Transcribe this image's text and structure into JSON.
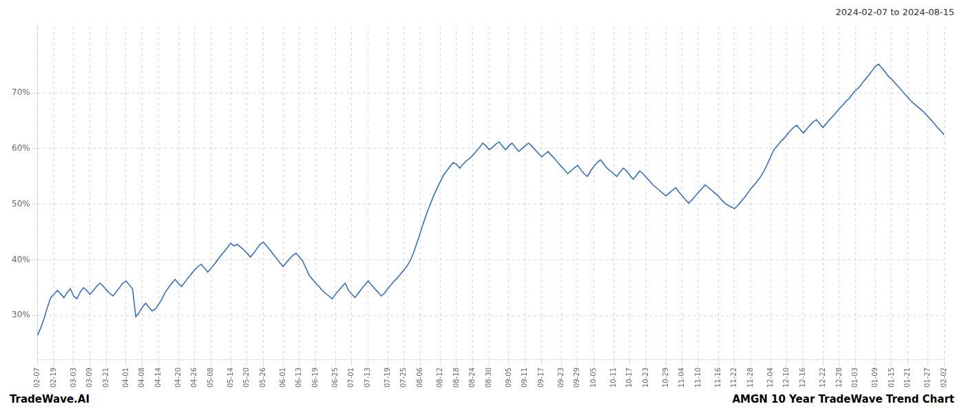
{
  "chart_data": {
    "type": "line",
    "title": "AMGN 10 Year TradeWave Trend Chart",
    "subtitle": "2024-02-07 to 2024-08-15",
    "annotations": [
      "TradeWave.AI"
    ],
    "color": "#2866b8",
    "grid": true,
    "ylim": [
      22,
      82
    ],
    "yticks": [
      {
        "value": 30,
        "label": "30%"
      },
      {
        "value": 40,
        "label": "40%"
      },
      {
        "value": 50,
        "label": "50%"
      },
      {
        "value": 60,
        "label": "60%"
      },
      {
        "value": 70,
        "label": "70%"
      }
    ],
    "categories": [
      "02-07",
      null,
      null,
      null,
      null,
      "02-19",
      null,
      null,
      null,
      null,
      null,
      "03-03",
      null,
      null,
      null,
      null,
      "03-09",
      null,
      null,
      null,
      null,
      "03-21",
      null,
      null,
      null,
      null,
      null,
      "04-01",
      null,
      null,
      null,
      null,
      "04-08",
      null,
      null,
      null,
      null,
      "04-14",
      null,
      null,
      null,
      null,
      null,
      "04-20",
      null,
      null,
      null,
      null,
      "04-26",
      null,
      null,
      null,
      null,
      "05-08",
      null,
      null,
      null,
      null,
      null,
      "05-14",
      null,
      null,
      null,
      null,
      "05-20",
      null,
      null,
      null,
      null,
      "05-26",
      null,
      null,
      null,
      null,
      null,
      "06-01",
      null,
      null,
      null,
      null,
      "06-13",
      null,
      null,
      null,
      null,
      "06-19",
      null,
      null,
      null,
      null,
      null,
      "06-25",
      null,
      null,
      null,
      null,
      "07-01",
      null,
      null,
      null,
      null,
      "07-13",
      null,
      null,
      null,
      null,
      null,
      "07-19",
      null,
      null,
      null,
      null,
      "07-25",
      null,
      null,
      null,
      null,
      "08-06",
      null,
      null,
      null,
      null,
      null,
      "08-12",
      null,
      null,
      null,
      null,
      "08-18",
      null,
      null,
      null,
      null,
      "08-24",
      null,
      null,
      null,
      null,
      "08-30",
      null,
      null,
      null,
      null,
      null,
      "09-05",
      null,
      null,
      null,
      null,
      "09-11",
      null,
      null,
      null,
      null,
      "09-17",
      null,
      null,
      null,
      null,
      null,
      "09-23",
      null,
      null,
      null,
      null,
      "09-29",
      null,
      null,
      null,
      null,
      "10-05",
      null,
      null,
      null,
      null,
      null,
      "10-11",
      null,
      null,
      null,
      null,
      "10-17",
      null,
      null,
      null,
      null,
      "10-23",
      null,
      null,
      null,
      null,
      null,
      "10-29",
      null,
      null,
      null,
      null,
      "11-04",
      null,
      null,
      null,
      null,
      "11-10",
      null,
      null,
      null,
      null,
      null,
      "11-16",
      null,
      null,
      null,
      null,
      "11-22",
      null,
      null,
      null,
      null,
      "11-28",
      null,
      null,
      null,
      null,
      null,
      "12-04",
      null,
      null,
      null,
      null,
      "12-10",
      null,
      null,
      null,
      null,
      "12-16",
      null,
      null,
      null,
      null,
      null,
      "12-22",
      null,
      null,
      null,
      null,
      "12-28",
      null,
      null,
      null,
      null,
      "01-03",
      null,
      null,
      null,
      null,
      null,
      "01-09",
      null,
      null,
      null,
      null,
      "01-15",
      null,
      null,
      null,
      null,
      "01-21",
      null,
      null,
      null,
      null,
      null,
      "01-27",
      null,
      null,
      null,
      null,
      "02-02"
    ],
    "values": [
      26.5,
      27.8,
      29.5,
      31.5,
      33.2,
      33.8,
      34.5,
      33.9,
      33.2,
      34.1,
      34.8,
      33.5,
      33.0,
      34.2,
      35.0,
      34.5,
      33.8,
      34.5,
      35.2,
      35.8,
      35.3,
      34.6,
      34.0,
      33.5,
      34.2,
      35.0,
      35.8,
      36.2,
      35.5,
      34.8,
      29.8,
      30.5,
      31.5,
      32.2,
      31.5,
      30.8,
      31.2,
      32.0,
      33.0,
      34.2,
      35.0,
      35.8,
      36.5,
      35.8,
      35.2,
      36.0,
      36.8,
      37.5,
      38.2,
      38.8,
      39.2,
      38.5,
      37.8,
      38.5,
      39.2,
      40.0,
      40.8,
      41.5,
      42.2,
      43.0,
      42.5,
      42.8,
      42.3,
      41.8,
      41.2,
      40.5,
      41.2,
      42.0,
      42.8,
      43.2,
      42.5,
      41.8,
      41.0,
      40.3,
      39.5,
      38.8,
      39.5,
      40.2,
      40.8,
      41.2,
      40.5,
      39.8,
      38.5,
      37.2,
      36.5,
      35.8,
      35.2,
      34.5,
      34.0,
      33.5,
      33.0,
      33.8,
      34.5,
      35.2,
      35.8,
      34.5,
      33.8,
      33.2,
      34.0,
      34.8,
      35.5,
      36.2,
      35.5,
      34.8,
      34.2,
      33.5,
      34.0,
      34.8,
      35.5,
      36.2,
      36.8,
      37.5,
      38.2,
      39.0,
      40.0,
      41.5,
      43.2,
      45.0,
      46.8,
      48.5,
      50.0,
      51.5,
      52.8,
      54.0,
      55.2,
      56.0,
      56.8,
      57.5,
      57.2,
      56.5,
      57.2,
      57.8,
      58.2,
      58.8,
      59.5,
      60.2,
      61.0,
      60.5,
      59.8,
      60.2,
      60.8,
      61.2,
      60.5,
      59.8,
      60.5,
      61.0,
      60.2,
      59.5,
      60.0,
      60.5,
      61.0,
      60.5,
      59.8,
      59.2,
      58.5,
      59.0,
      59.5,
      58.8,
      58.2,
      57.5,
      56.8,
      56.2,
      55.5,
      56.0,
      56.5,
      57.0,
      56.2,
      55.5,
      55.0,
      56.0,
      56.8,
      57.5,
      58.0,
      57.2,
      56.5,
      56.0,
      55.5,
      55.0,
      55.8,
      56.5,
      56.0,
      55.2,
      54.5,
      55.2,
      56.0,
      55.5,
      54.8,
      54.2,
      53.5,
      53.0,
      52.5,
      52.0,
      51.5,
      52.0,
      52.5,
      53.0,
      52.2,
      51.5,
      50.8,
      50.2,
      50.8,
      51.5,
      52.2,
      52.8,
      53.5,
      53.0,
      52.5,
      52.0,
      51.5,
      50.8,
      50.2,
      49.8,
      49.5,
      49.2,
      49.8,
      50.5,
      51.2,
      52.0,
      52.8,
      53.5,
      54.2,
      55.0,
      56.0,
      57.2,
      58.5,
      59.8,
      60.5,
      61.2,
      61.8,
      62.5,
      63.2,
      63.8,
      64.2,
      63.5,
      62.8,
      63.5,
      64.2,
      64.8,
      65.2,
      64.5,
      63.8,
      64.5,
      65.2,
      65.8,
      66.5,
      67.2,
      67.8,
      68.5,
      69.0,
      69.8,
      70.5,
      71.0,
      71.8,
      72.5,
      73.2,
      74.0,
      74.8,
      75.2,
      74.5,
      73.8,
      73.0,
      72.5,
      71.8,
      71.2,
      70.5,
      69.8,
      69.2,
      68.5,
      68.0,
      67.5,
      67.0,
      66.5,
      65.8,
      65.2,
      64.5,
      63.8,
      63.2,
      62.5
    ]
  }
}
